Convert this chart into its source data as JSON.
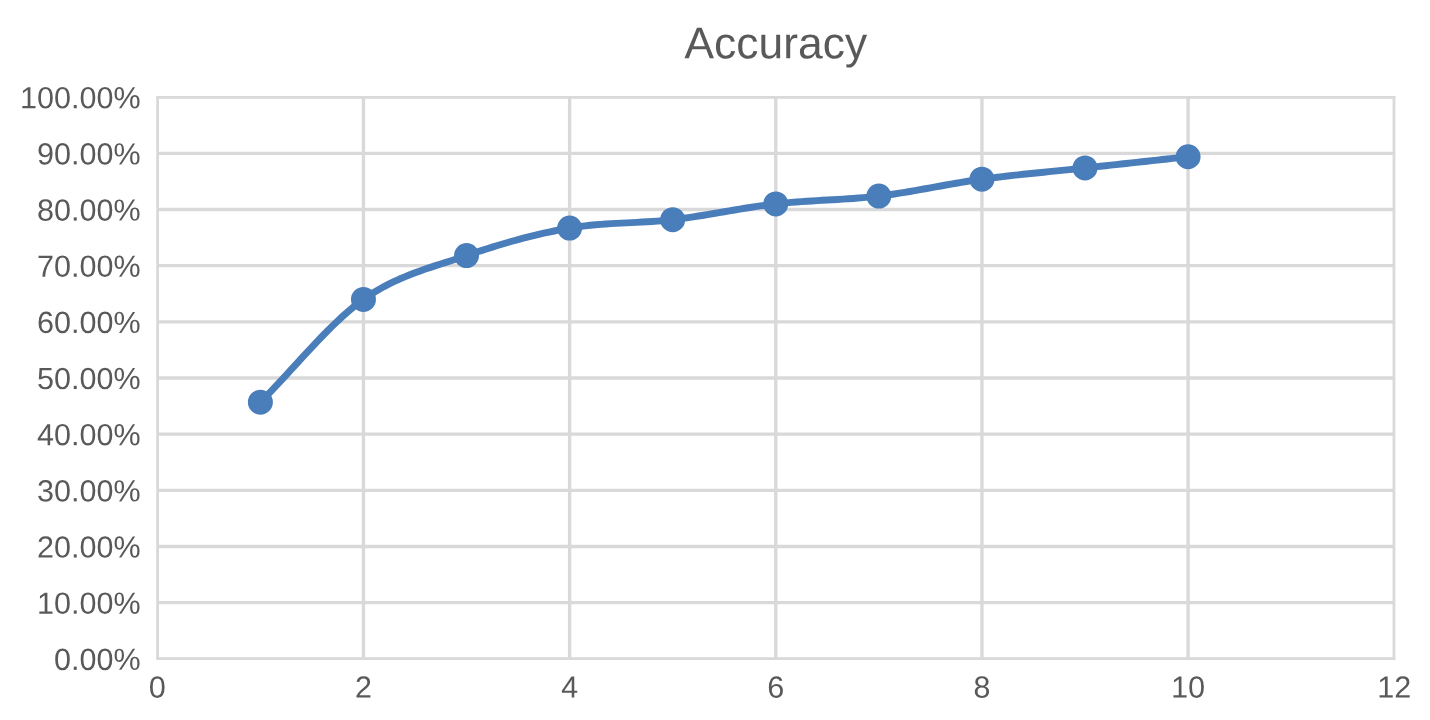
{
  "chart_data": {
    "type": "line",
    "title": "Accuracy",
    "x": [
      1,
      2,
      3,
      4,
      5,
      6,
      7,
      8,
      9,
      10
    ],
    "series": [
      {
        "color": "#4a7ebb",
        "values": [
          45.7,
          64.0,
          71.8,
          76.7,
          78.2,
          81.0,
          82.4,
          85.4,
          87.4,
          89.4
        ]
      }
    ],
    "xlim": [
      0,
      12
    ],
    "xticks": [
      0,
      2,
      4,
      6,
      8,
      10,
      12
    ],
    "ylim": [
      0,
      100
    ],
    "yticks": [
      {
        "value": 0,
        "label": "0.00%"
      },
      {
        "value": 10,
        "label": "10.00%"
      },
      {
        "value": 20,
        "label": "20.00%"
      },
      {
        "value": 30,
        "label": "30.00%"
      },
      {
        "value": 40,
        "label": "40.00%"
      },
      {
        "value": 50,
        "label": "50.00%"
      },
      {
        "value": 60,
        "label": "60.00%"
      },
      {
        "value": 70,
        "label": "70.00%"
      },
      {
        "value": 80,
        "label": "80.00%"
      },
      {
        "value": 90,
        "label": "90.00%"
      },
      {
        "value": 100,
        "label": "100.00%"
      }
    ],
    "grid": true,
    "marker": "circle",
    "line_style": "solid"
  }
}
